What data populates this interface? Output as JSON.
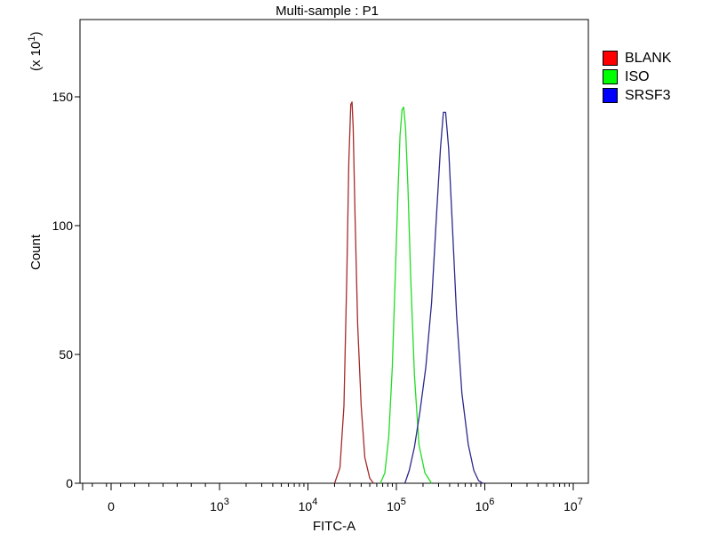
{
  "chart_data": {
    "type": "line",
    "title": "Multi-sample : P1",
    "xlabel": "FITC-A",
    "ylabel": "Count",
    "y_multiplier": "(x 10",
    "y_multiplier_exp": "1",
    "y_multiplier_close": ")",
    "x_scale": "log",
    "x_ticks": [
      {
        "value": 0,
        "base": "0",
        "exp": ""
      },
      {
        "value": 1000,
        "base": "10",
        "exp": "3"
      },
      {
        "value": 10000,
        "base": "10",
        "exp": "4"
      },
      {
        "value": 100000,
        "base": "10",
        "exp": "5"
      },
      {
        "value": 1000000,
        "base": "10",
        "exp": "6"
      },
      {
        "value": 10000000,
        "base": "10",
        "exp": "7"
      }
    ],
    "ylim": [
      0,
      180
    ],
    "y_ticks": [
      0,
      50,
      100,
      150
    ],
    "grid": false,
    "legend_position": "right",
    "series": [
      {
        "name": "BLANK",
        "color": "#a52a2a",
        "swatch": "#ff0000",
        "points": [
          [
            20000,
            0
          ],
          [
            23000,
            6
          ],
          [
            25500,
            30
          ],
          [
            27500,
            80
          ],
          [
            29000,
            125
          ],
          [
            30500,
            147
          ],
          [
            31500,
            148
          ],
          [
            32500,
            138
          ],
          [
            34000,
            105
          ],
          [
            36500,
            62
          ],
          [
            40000,
            30
          ],
          [
            44000,
            10
          ],
          [
            50000,
            2
          ],
          [
            55000,
            0
          ]
        ]
      },
      {
        "name": "ISO",
        "color": "#22dd22",
        "swatch": "#00ff00",
        "points": [
          [
            66000,
            0
          ],
          [
            74000,
            4
          ],
          [
            82000,
            18
          ],
          [
            90000,
            45
          ],
          [
            97000,
            80
          ],
          [
            104000,
            112
          ],
          [
            110000,
            135
          ],
          [
            116000,
            145
          ],
          [
            121000,
            146
          ],
          [
            127000,
            138
          ],
          [
            135000,
            115
          ],
          [
            145000,
            80
          ],
          [
            160000,
            42
          ],
          [
            180000,
            15
          ],
          [
            210000,
            4
          ],
          [
            250000,
            0
          ]
        ]
      },
      {
        "name": "SRSF3",
        "color": "#2a2a8c",
        "swatch": "#0000ff",
        "points": [
          [
            125000,
            0
          ],
          [
            140000,
            5
          ],
          [
            160000,
            14
          ],
          [
            185000,
            28
          ],
          [
            215000,
            45
          ],
          [
            250000,
            70
          ],
          [
            285000,
            105
          ],
          [
            315000,
            130
          ],
          [
            340000,
            144
          ],
          [
            360000,
            144
          ],
          [
            390000,
            130
          ],
          [
            430000,
            100
          ],
          [
            480000,
            65
          ],
          [
            550000,
            35
          ],
          [
            650000,
            15
          ],
          [
            750000,
            5
          ],
          [
            850000,
            1
          ],
          [
            950000,
            0
          ]
        ]
      }
    ]
  }
}
